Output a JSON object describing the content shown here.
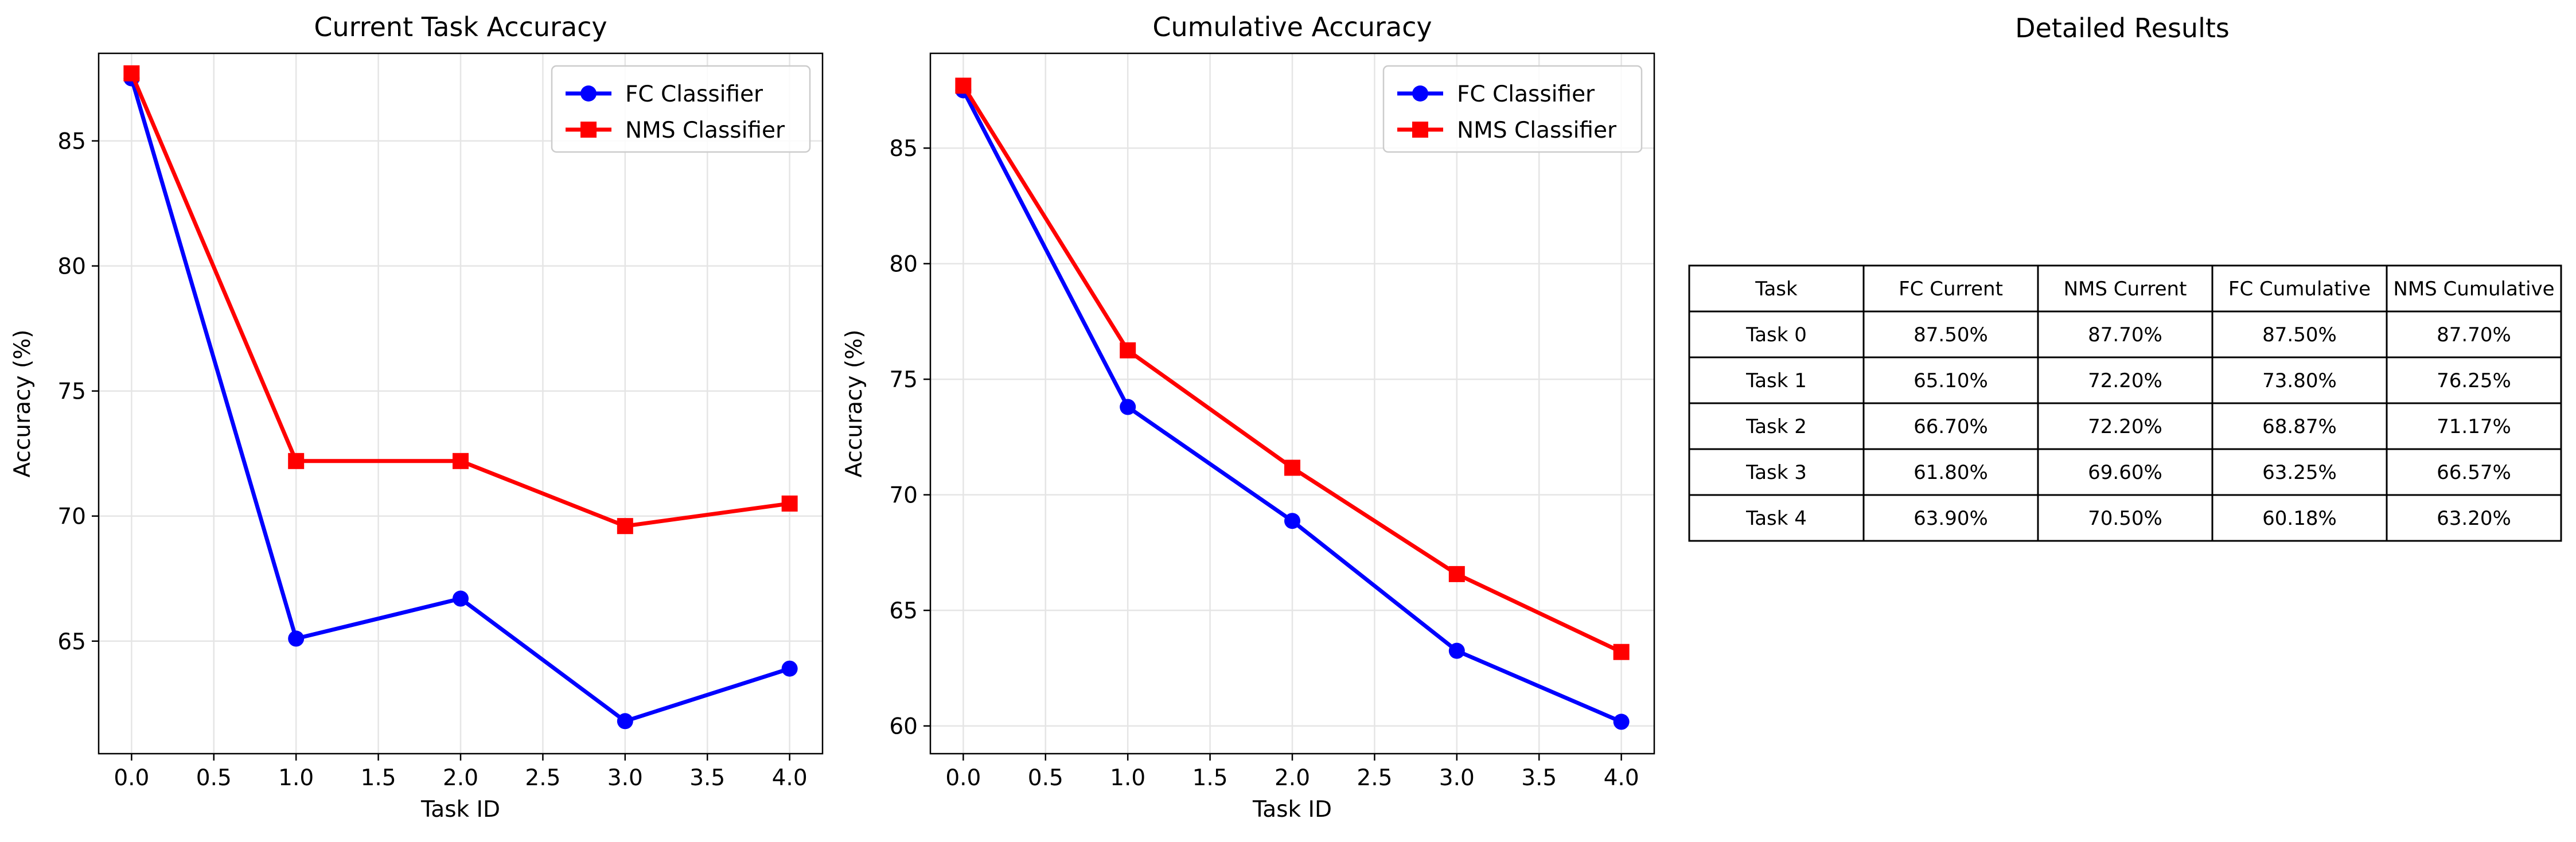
{
  "chart_data": [
    {
      "type": "line",
      "title": "Current Task Accuracy",
      "xlabel": "Task ID",
      "ylabel": "Accuracy (%)",
      "x": [
        0,
        1,
        2,
        3,
        4
      ],
      "xlim": [
        -0.2,
        4.2
      ],
      "ylim": [
        60.5,
        88.5
      ],
      "xticks": [
        0.0,
        0.5,
        1.0,
        1.5,
        2.0,
        2.5,
        3.0,
        3.5,
        4.0
      ],
      "xtick_labels": [
        "0.0",
        "0.5",
        "1.0",
        "1.5",
        "2.0",
        "2.5",
        "3.0",
        "3.5",
        "4.0"
      ],
      "yticks": [
        65,
        70,
        75,
        80,
        85
      ],
      "ytick_labels": [
        "65",
        "70",
        "75",
        "80",
        "85"
      ],
      "grid": true,
      "legend_position": "top-right",
      "series": [
        {
          "name": "FC Classifier",
          "color": "#0000ff",
          "marker": "circle",
          "values": [
            87.5,
            65.1,
            66.7,
            61.8,
            63.9
          ]
        },
        {
          "name": "NMS Classifier",
          "color": "#ff0000",
          "marker": "square",
          "values": [
            87.7,
            72.2,
            72.2,
            69.6,
            70.5
          ]
        }
      ]
    },
    {
      "type": "line",
      "title": "Cumulative Accuracy",
      "xlabel": "Task ID",
      "ylabel": "Accuracy (%)",
      "x": [
        0,
        1,
        2,
        3,
        4
      ],
      "xlim": [
        -0.2,
        4.2
      ],
      "ylim": [
        58.8,
        89.1
      ],
      "xticks": [
        0.0,
        0.5,
        1.0,
        1.5,
        2.0,
        2.5,
        3.0,
        3.5,
        4.0
      ],
      "xtick_labels": [
        "0.0",
        "0.5",
        "1.0",
        "1.5",
        "2.0",
        "2.5",
        "3.0",
        "3.5",
        "4.0"
      ],
      "yticks": [
        60,
        65,
        70,
        75,
        80,
        85
      ],
      "ytick_labels": [
        "60",
        "65",
        "70",
        "75",
        "80",
        "85"
      ],
      "grid": true,
      "legend_position": "top-right",
      "series": [
        {
          "name": "FC Classifier",
          "color": "#0000ff",
          "marker": "circle",
          "values": [
            87.5,
            73.8,
            68.87,
            63.25,
            60.18
          ]
        },
        {
          "name": "NMS Classifier",
          "color": "#ff0000",
          "marker": "square",
          "values": [
            87.7,
            76.25,
            71.17,
            66.57,
            63.2
          ]
        }
      ]
    },
    {
      "type": "table",
      "title": "Detailed Results",
      "columns": [
        "Task",
        "FC Current",
        "NMS Current",
        "FC Cumulative",
        "NMS Cumulative"
      ],
      "rows": [
        [
          "Task 0",
          "87.50%",
          "87.70%",
          "87.50%",
          "87.70%"
        ],
        [
          "Task 1",
          "65.10%",
          "72.20%",
          "73.80%",
          "76.25%"
        ],
        [
          "Task 2",
          "66.70%",
          "72.20%",
          "68.87%",
          "71.17%"
        ],
        [
          "Task 3",
          "61.80%",
          "69.60%",
          "63.25%",
          "66.57%"
        ],
        [
          "Task 4",
          "63.90%",
          "70.50%",
          "60.18%",
          "63.20%"
        ]
      ]
    }
  ]
}
